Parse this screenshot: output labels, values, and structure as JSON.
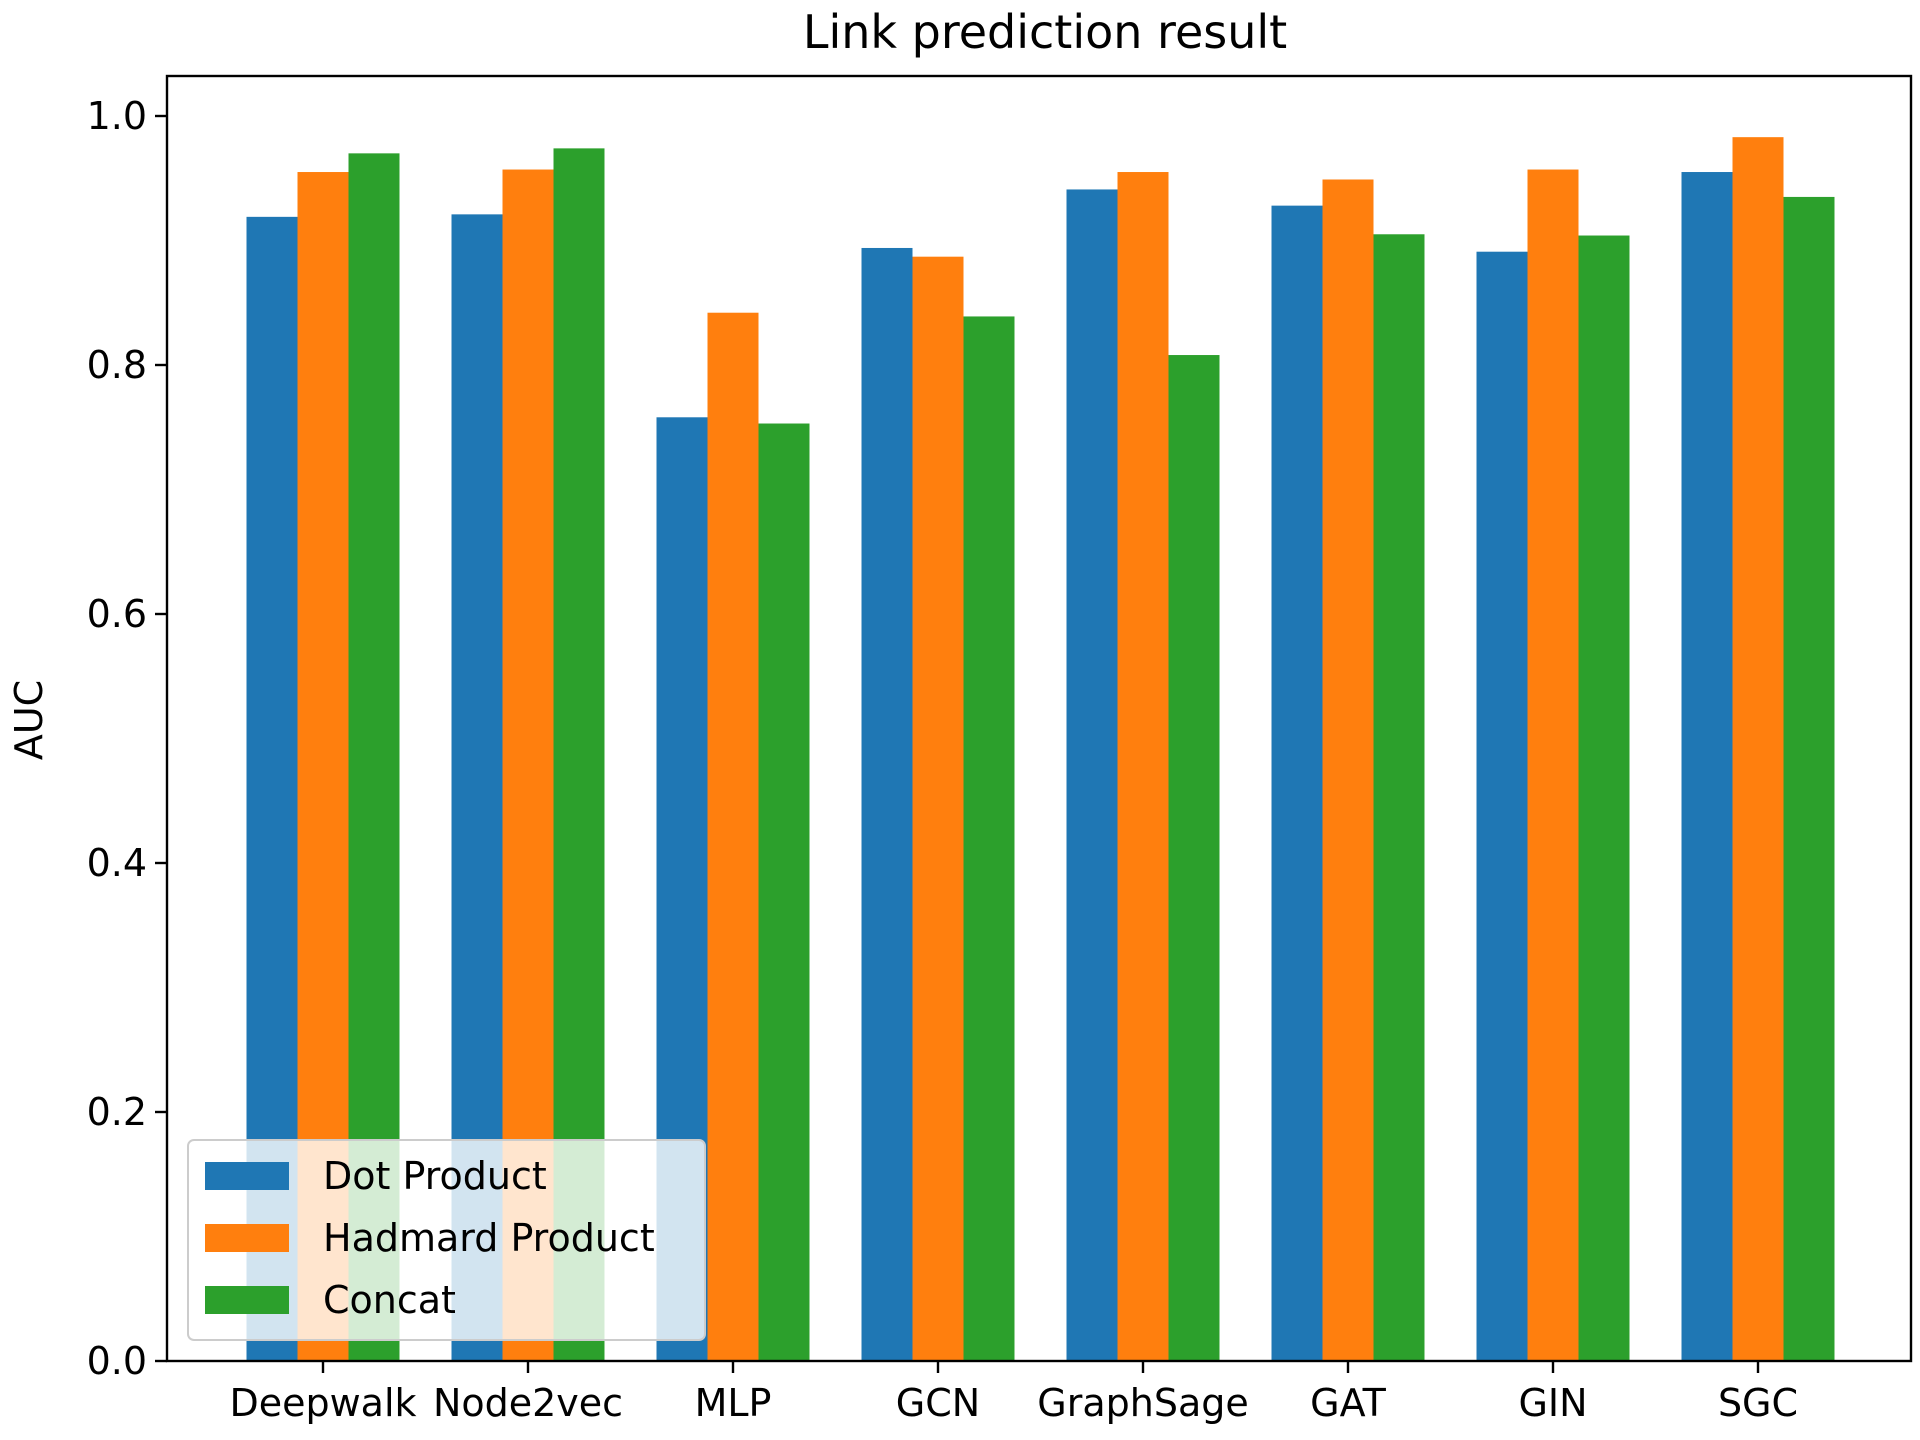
{
  "chart_data": {
    "type": "bar",
    "title": "Link prediction result",
    "xlabel": "",
    "ylabel": "AUC",
    "ylim": [
      0,
      1.03
    ],
    "yticks": [
      "0.0",
      "0.2",
      "0.4",
      "0.6",
      "0.8",
      "1.0"
    ],
    "categories": [
      "Deepwalk",
      "Node2vec",
      "MLP",
      "GCN",
      "GraphSage",
      "GAT",
      "GIN",
      "SGC"
    ],
    "series": [
      {
        "name": "Dot Product",
        "color": "#1f77b4",
        "values": [
          0.919,
          0.921,
          0.758,
          0.894,
          0.941,
          0.928,
          0.891,
          0.955
        ]
      },
      {
        "name": "Hadmard Product",
        "color": "#ff7f0e",
        "values": [
          0.955,
          0.957,
          0.842,
          0.887,
          0.955,
          0.949,
          0.957,
          0.983
        ]
      },
      {
        "name": "Concat",
        "color": "#2ca02c",
        "values": [
          0.97,
          0.974,
          0.753,
          0.839,
          0.808,
          0.905,
          0.904,
          0.935
        ]
      }
    ],
    "grid": false,
    "legend_position": "lower-left"
  }
}
